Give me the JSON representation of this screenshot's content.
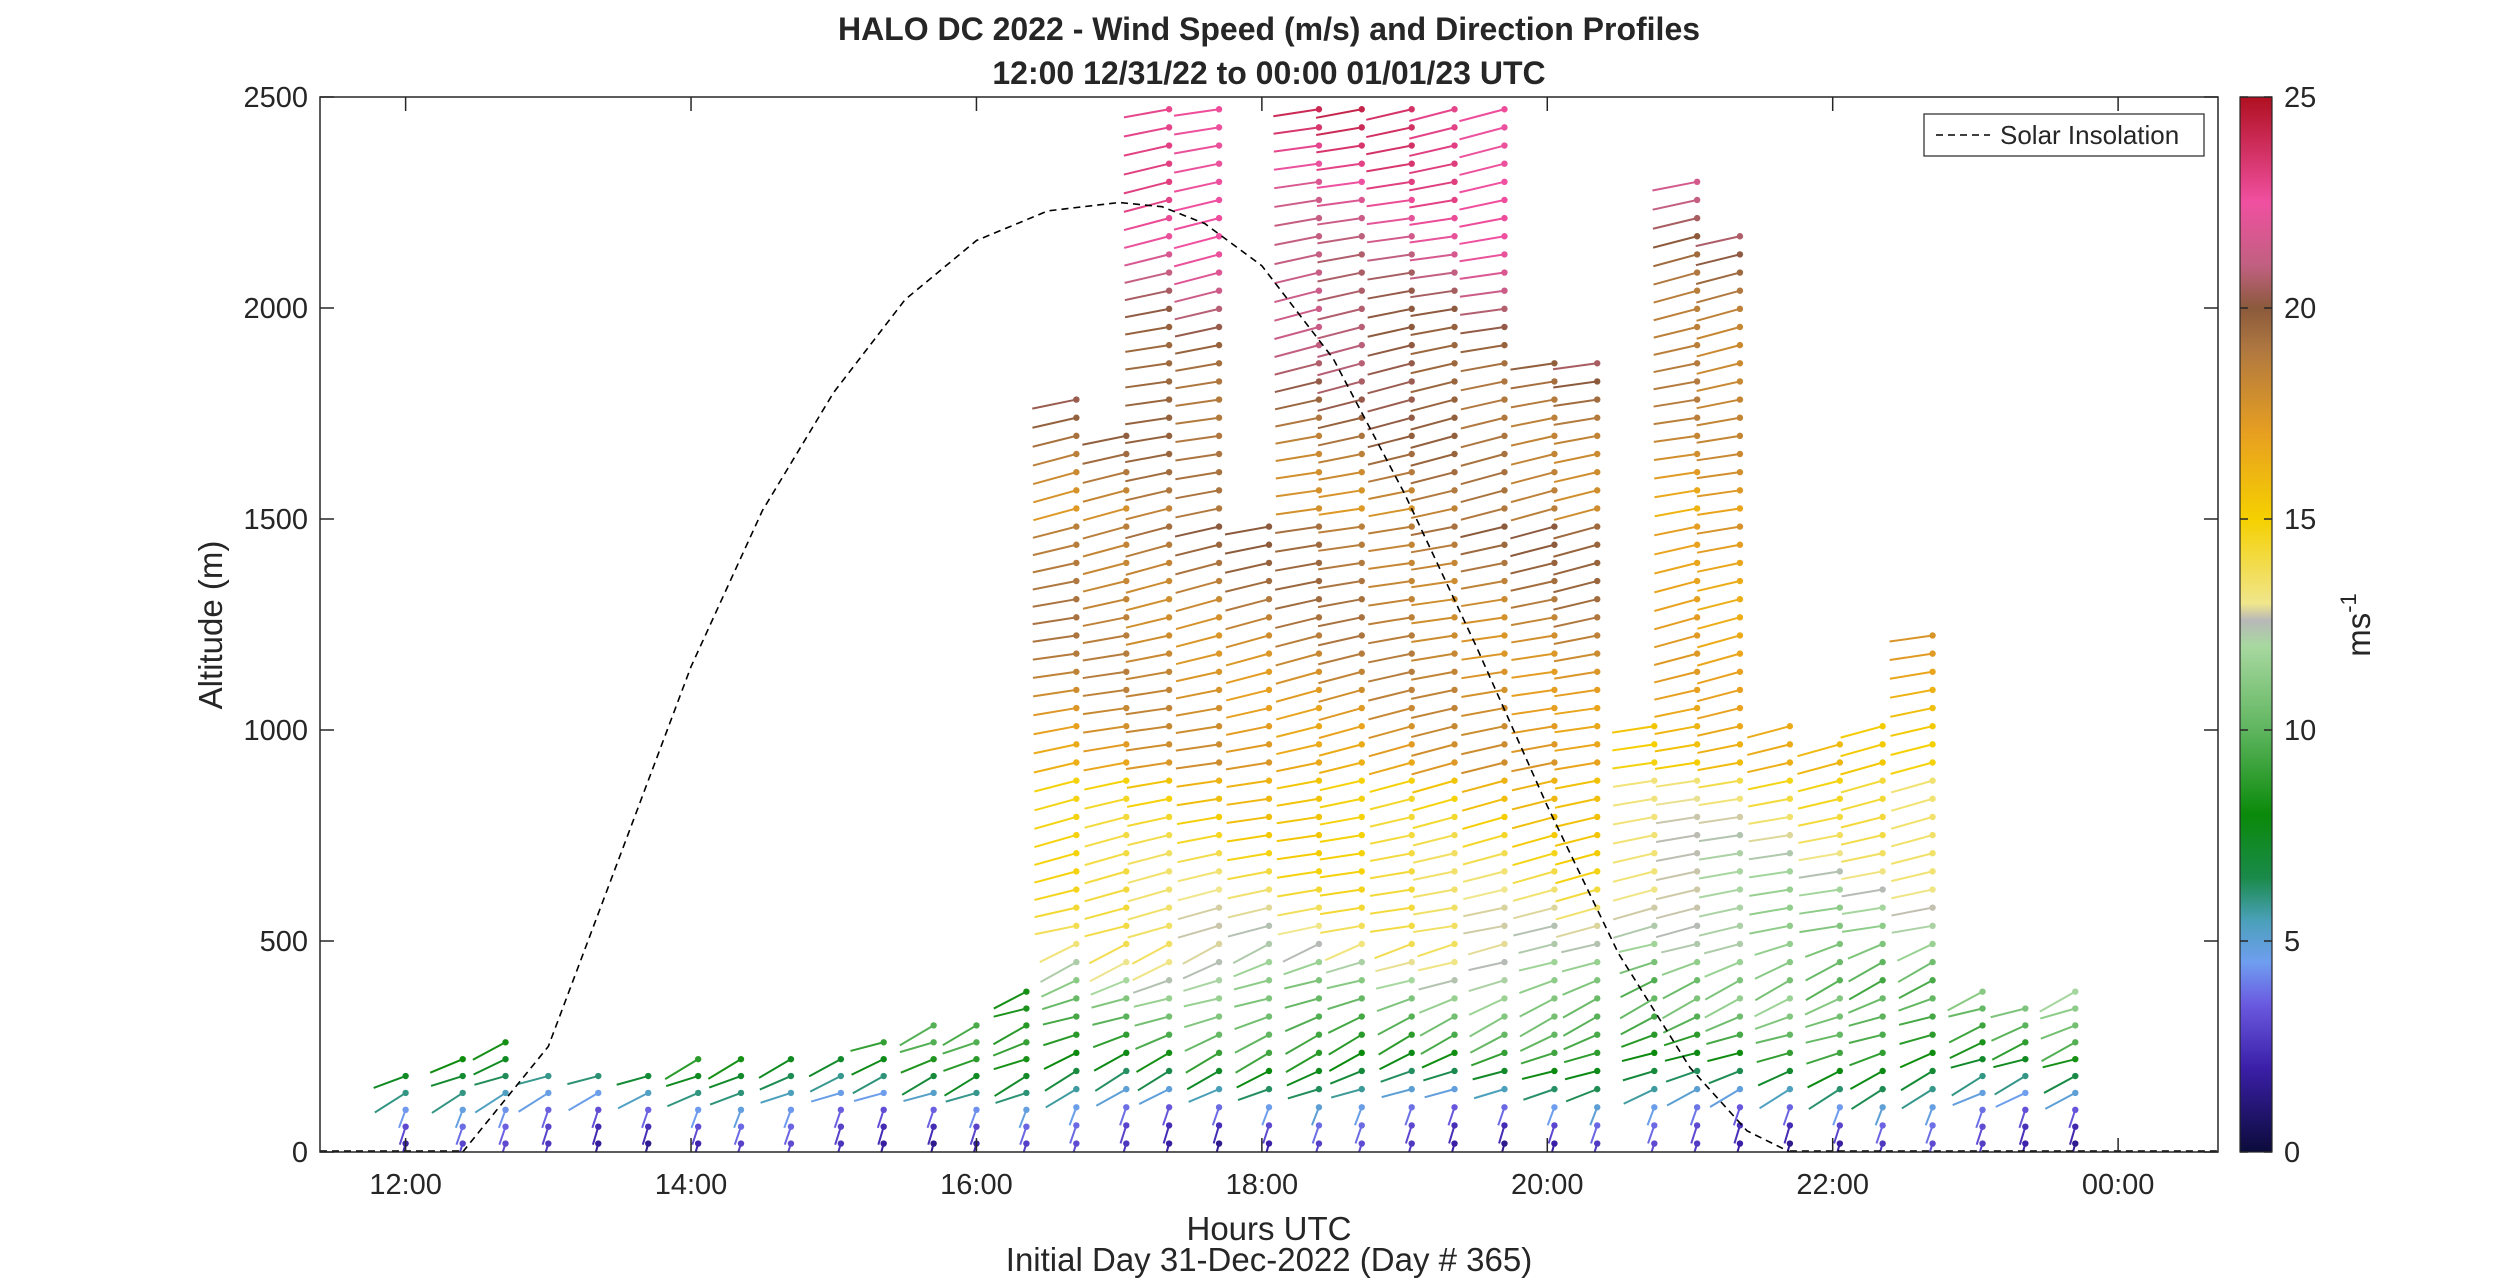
{
  "chart_data": {
    "type": "scatter",
    "title": "HALO DC 2022 - Wind Speed (m/s) and Direction Profiles",
    "subtitle": "12:00 12/31/22 to 00:00 01/01/23  UTC",
    "xlabel": "Hours UTC",
    "xlabel2": "Initial Day 31-Dec-2022 (Day # 365)",
    "ylabel": "Altitude (m)",
    "xlim": [
      11.4,
      24.7
    ],
    "ylim": [
      0,
      2500
    ],
    "xticks": [
      12,
      14,
      16,
      18,
      20,
      22,
      24
    ],
    "xtick_labels": [
      "12:00",
      "14:00",
      "16:00",
      "18:00",
      "20:00",
      "22:00",
      "00:00"
    ],
    "yticks": [
      0,
      500,
      1000,
      1500,
      2000,
      2500
    ],
    "ytick_labels": [
      "0",
      "500",
      "1000",
      "1500",
      "2000",
      "2500"
    ],
    "grid": false,
    "legend": {
      "position": "top-right",
      "entries": [
        "Solar Insolation"
      ]
    },
    "colorbar": {
      "label": "ms",
      "label_exponent": "-1",
      "range": [
        0,
        25
      ],
      "ticks": [
        0,
        5,
        10,
        15,
        20,
        25
      ],
      "tick_labels": [
        "0",
        "5",
        "10",
        "15",
        "20",
        "25"
      ],
      "colors": [
        {
          "v": 0,
          "c": "#0b0b3a"
        },
        {
          "v": 2,
          "c": "#3b1fa8"
        },
        {
          "v": 3.5,
          "c": "#6a5ae0"
        },
        {
          "v": 4.5,
          "c": "#6f9ef0"
        },
        {
          "v": 5.5,
          "c": "#4aa0b8"
        },
        {
          "v": 6.5,
          "c": "#1a8a4a"
        },
        {
          "v": 8,
          "c": "#0a8a0a"
        },
        {
          "v": 10,
          "c": "#5fb55f"
        },
        {
          "v": 12,
          "c": "#a8d8a0"
        },
        {
          "v": 12.6,
          "c": "#b8b8b8"
        },
        {
          "v": 13,
          "c": "#f0e68c"
        },
        {
          "v": 15,
          "c": "#f5d000"
        },
        {
          "v": 17,
          "c": "#e8a020"
        },
        {
          "v": 19,
          "c": "#b07840"
        },
        {
          "v": 20,
          "c": "#8b5a3c"
        },
        {
          "v": 21,
          "c": "#c06080"
        },
        {
          "v": 22.5,
          "c": "#f050a0"
        },
        {
          "v": 25,
          "c": "#b01020"
        }
      ]
    },
    "solar_insolation": {
      "name": "Solar Insolation",
      "style": "dashed",
      "color": "#000000",
      "x": [
        12.4,
        13.0,
        13.5,
        14.0,
        14.5,
        15.0,
        15.5,
        16.0,
        16.5,
        17.0,
        17.3,
        17.6,
        18.0,
        18.5,
        19.0,
        19.5,
        20.0,
        20.5,
        21.0,
        21.4,
        21.7
      ],
      "y": [
        0,
        250,
        700,
        1150,
        1520,
        1800,
        2020,
        2160,
        2230,
        2250,
        2240,
        2200,
        2100,
        1880,
        1560,
        1200,
        820,
        470,
        200,
        50,
        0
      ]
    },
    "profiles": [
      {
        "x": 12.0,
        "ymin": 20,
        "ymax": 200
      },
      {
        "x": 12.4,
        "ymin": 20,
        "ymax": 240
      },
      {
        "x": 12.7,
        "ymin": 20,
        "ymax": 280
      },
      {
        "x": 13.0,
        "ymin": 20,
        "ymax": 200
      },
      {
        "x": 13.35,
        "ymin": 20,
        "ymax": 200
      },
      {
        "x": 13.7,
        "ymin": 20,
        "ymax": 200
      },
      {
        "x": 14.05,
        "ymin": 20,
        "ymax": 240
      },
      {
        "x": 14.35,
        "ymin": 20,
        "ymax": 240
      },
      {
        "x": 14.7,
        "ymin": 20,
        "ymax": 240
      },
      {
        "x": 15.05,
        "ymin": 20,
        "ymax": 240
      },
      {
        "x": 15.35,
        "ymin": 20,
        "ymax": 290
      },
      {
        "x": 15.7,
        "ymin": 20,
        "ymax": 310
      },
      {
        "x": 16.0,
        "ymin": 20,
        "ymax": 300
      },
      {
        "x": 16.35,
        "ymin": 20,
        "ymax": 380
      },
      {
        "x": 16.7,
        "ymin": 20,
        "ymax": 1800
      },
      {
        "x": 17.05,
        "ymin": 20,
        "ymax": 1700
      },
      {
        "x": 17.35,
        "ymin": 20,
        "ymax": 2480
      },
      {
        "x": 17.7,
        "ymin": 20,
        "ymax": 2480
      },
      {
        "x": 18.05,
        "ymin": 20,
        "ymax": 1500
      },
      {
        "x": 18.4,
        "ymin": 20,
        "ymax": 2480
      },
      {
        "x": 18.7,
        "ymin": 20,
        "ymax": 2480
      },
      {
        "x": 19.05,
        "ymin": 20,
        "ymax": 2480
      },
      {
        "x": 19.35,
        "ymin": 20,
        "ymax": 2480
      },
      {
        "x": 19.7,
        "ymin": 20,
        "ymax": 2480
      },
      {
        "x": 20.05,
        "ymin": 20,
        "ymax": 1900
      },
      {
        "x": 20.35,
        "ymin": 20,
        "ymax": 1900
      },
      {
        "x": 20.75,
        "ymin": 20,
        "ymax": 1050
      },
      {
        "x": 21.05,
        "ymin": 20,
        "ymax": 2300
      },
      {
        "x": 21.35,
        "ymin": 20,
        "ymax": 2200
      },
      {
        "x": 21.7,
        "ymin": 20,
        "ymax": 1050
      },
      {
        "x": 22.05,
        "ymin": 20,
        "ymax": 1000
      },
      {
        "x": 22.35,
        "ymin": 20,
        "ymax": 1050
      },
      {
        "x": 22.7,
        "ymin": 20,
        "ymax": 1250
      },
      {
        "x": 23.05,
        "ymin": 20,
        "ymax": 400
      },
      {
        "x": 23.35,
        "ymin": 20,
        "ymax": 340
      },
      {
        "x": 23.7,
        "ymin": 20,
        "ymax": 380
      }
    ]
  }
}
